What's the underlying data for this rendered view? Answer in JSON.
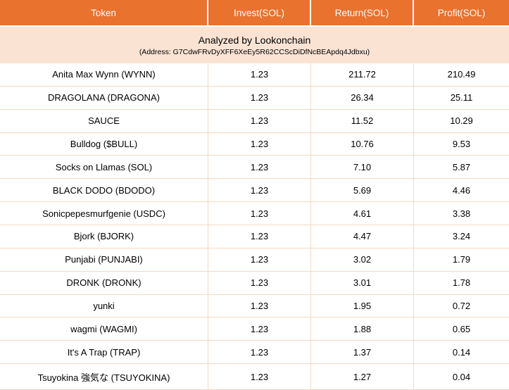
{
  "chart_data": {
    "type": "table",
    "columns": [
      "Token",
      "Invest(SOL)",
      "Return(SOL)",
      "Profit(SOL)"
    ],
    "banner": {
      "title": "Analyzed by Lookonchain",
      "address": "(Address: G7CdwFRvDyXFF6XeEy5R62CCScDiDfNcBEApdq4Jdbxu)"
    },
    "rows": [
      [
        "Anita Max Wynn (WYNN)",
        "1.23",
        "211.72",
        "210.49"
      ],
      [
        "DRAGOLANA (DRAGONA)",
        "1.23",
        "26.34",
        "25.11"
      ],
      [
        "SAUCE",
        "1.23",
        "11.52",
        "10.29"
      ],
      [
        "Bulldog ($BULL)",
        "1.23",
        "10.76",
        "9.53"
      ],
      [
        "Socks on Llamas (SOL)",
        "1.23",
        "7.10",
        "5.87"
      ],
      [
        "BLACK DODO (BDODO)",
        "1.23",
        "5.69",
        "4.46"
      ],
      [
        "Sonicpepesmurfgenie (USDC)",
        "1.23",
        "4.61",
        "3.38"
      ],
      [
        "Bjork (BJORK)",
        "1.23",
        "4.47",
        "3.24"
      ],
      [
        "Punjabi (PUNJABI)",
        "1.23",
        "3.02",
        "1.79"
      ],
      [
        "DRONK (DRONK)",
        "1.23",
        "3.01",
        "1.78"
      ],
      [
        "yunki",
        "1.23",
        "1.95",
        "0.72"
      ],
      [
        "wagmi (WAGMI)",
        "1.23",
        "1.88",
        "0.65"
      ],
      [
        "It's A Trap (TRAP)",
        "1.23",
        "1.37",
        "0.14"
      ],
      [
        "Tsuyokina 強気な (TSUYOKINA)",
        "1.23",
        "1.27",
        "0.04"
      ]
    ]
  },
  "colors": {
    "header_bg": "#E8722E",
    "header_text": "#FFFFFF",
    "banner_bg": "#FBE3D3",
    "grid_border": "#F7D8C2",
    "row_text": "#000000"
  }
}
